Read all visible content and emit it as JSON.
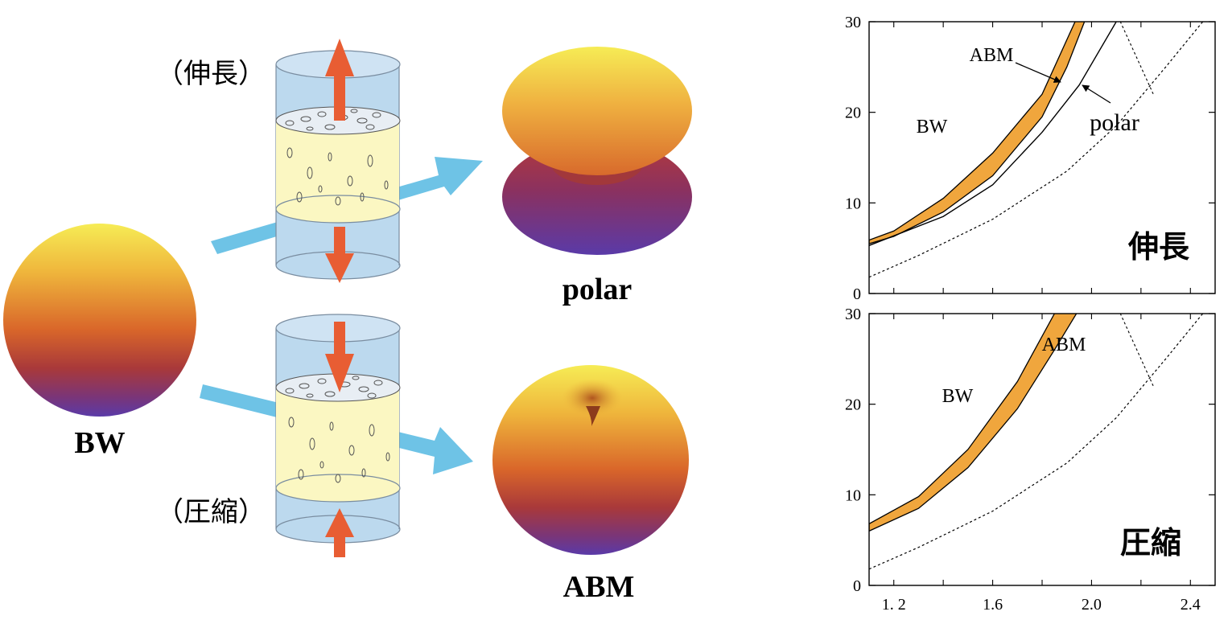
{
  "left": {
    "bw_label": "BW",
    "polar_label": "polar",
    "abm_label": "ABM",
    "stretch_label": "（伸長）",
    "compress_label": "（圧縮）"
  },
  "colors": {
    "sphere_top": "#f3e24a",
    "sphere_mid": "#d9662a",
    "sphere_dark": "#8a2f3a",
    "sphere_bottom": "#5a3aa8",
    "cylinder": "#bcd9ee",
    "aerogel": "#fbf7c2",
    "force_arrow": "#e85d33",
    "flow_arrow": "#6ec3e6",
    "abm_band": "#f0a63d"
  },
  "chart_data": [
    {
      "type": "area",
      "panel_label": "伸長",
      "xlim": [
        1.1,
        2.5
      ],
      "ylim": [
        0,
        30
      ],
      "yticks": [
        "0",
        "10",
        "20",
        "30"
      ],
      "region_labels": [
        "BW",
        "ABM",
        "polar"
      ],
      "series": [
        {
          "name": "ABM",
          "x": [
            1.1,
            1.2,
            1.4,
            1.6,
            1.8,
            1.9,
            2.0,
            2.05
          ],
          "y_lower": [
            5.5,
            6.3,
            9.0,
            13.0,
            19.5,
            25.0,
            32.0,
            37.0
          ],
          "y_upper": [
            5.9,
            6.9,
            10.5,
            15.5,
            22.0,
            28.0,
            34.0,
            38.0
          ]
        },
        {
          "name": "polar",
          "x": [
            1.1,
            1.4,
            1.6,
            1.8,
            1.95,
            2.1,
            2.2
          ],
          "y": [
            5.3,
            8.5,
            12.0,
            17.8,
            23.0,
            30.0,
            33.0
          ]
        },
        {
          "name": "",
          "x": [
            1.1,
            1.3,
            1.6,
            1.9,
            2.1,
            2.3,
            2.45
          ],
          "y": [
            1.8,
            4.2,
            8.2,
            13.5,
            18.5,
            25.0,
            30.0
          ]
        }
      ]
    },
    {
      "type": "area",
      "panel_label": "圧縮",
      "xlim": [
        1.1,
        2.5
      ],
      "ylim": [
        0,
        30
      ],
      "xticks": [
        "1. 2",
        "1.6",
        "2.0",
        "2.4"
      ],
      "yticks": [
        "0",
        "10",
        "20",
        "30"
      ],
      "region_labels": [
        "BW",
        "ABM"
      ],
      "series": [
        {
          "name": "ABM",
          "x": [
            1.1,
            1.3,
            1.5,
            1.7,
            1.85,
            1.95
          ],
          "y_lower": [
            6.0,
            8.5,
            13.0,
            19.5,
            26.0,
            30.5
          ],
          "y_upper": [
            6.8,
            9.8,
            15.0,
            22.5,
            30.0,
            32.0
          ]
        },
        {
          "name": "",
          "x": [
            1.1,
            1.3,
            1.6,
            1.9,
            2.1,
            2.3,
            2.45
          ],
          "y": [
            1.8,
            4.2,
            8.2,
            13.5,
            18.5,
            25.0,
            30.0
          ]
        }
      ]
    }
  ]
}
